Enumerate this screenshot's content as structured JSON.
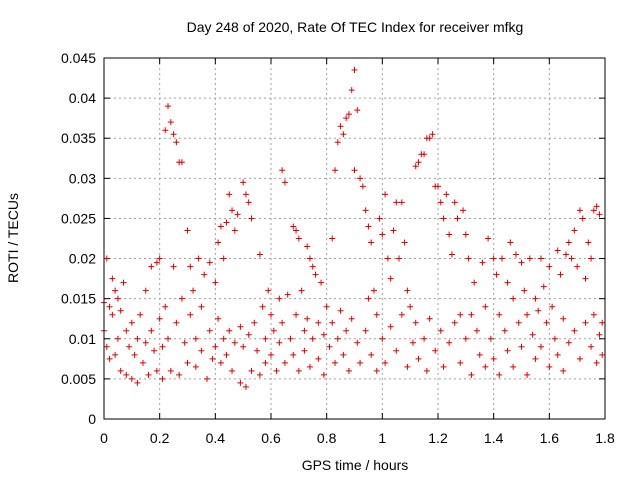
{
  "chart_data": {
    "type": "scatter",
    "title": "Day 248 of 2020, Rate Of TEC Index for receiver mfkg",
    "xlabel": "GPS time / hours",
    "ylabel": "ROTI / TECUs",
    "xlim": [
      0,
      1.8
    ],
    "ylim": [
      0,
      0.045
    ],
    "x_ticks": [
      "0",
      "0.2",
      "0.4",
      "0.6",
      "0.8",
      "1",
      "1.2",
      "1.4",
      "1.6",
      "1.8"
    ],
    "y_ticks": [
      "0",
      "0.005",
      "0.01",
      "0.015",
      "0.02",
      "0.025",
      "0.03",
      "0.035",
      "0.04",
      "0.045"
    ],
    "grid": true,
    "marker": "plus",
    "color": "#e00000",
    "points": [
      [
        0.0,
        0.0145
      ],
      [
        0.0,
        0.011
      ],
      [
        0.01,
        0.02
      ],
      [
        0.01,
        0.009
      ],
      [
        0.02,
        0.014
      ],
      [
        0.02,
        0.0075
      ],
      [
        0.03,
        0.0175
      ],
      [
        0.03,
        0.013
      ],
      [
        0.04,
        0.016
      ],
      [
        0.04,
        0.008
      ],
      [
        0.05,
        0.015
      ],
      [
        0.05,
        0.01
      ],
      [
        0.06,
        0.0135
      ],
      [
        0.06,
        0.006
      ],
      [
        0.07,
        0.017
      ],
      [
        0.08,
        0.011
      ],
      [
        0.08,
        0.0055
      ],
      [
        0.09,
        0.009
      ],
      [
        0.1,
        0.012
      ],
      [
        0.1,
        0.005
      ],
      [
        0.11,
        0.008
      ],
      [
        0.12,
        0.01
      ],
      [
        0.12,
        0.0045
      ],
      [
        0.13,
        0.013
      ],
      [
        0.14,
        0.007
      ],
      [
        0.15,
        0.016
      ],
      [
        0.15,
        0.0095
      ],
      [
        0.16,
        0.0055
      ],
      [
        0.17,
        0.019
      ],
      [
        0.17,
        0.011
      ],
      [
        0.18,
        0.0085
      ],
      [
        0.19,
        0.0195
      ],
      [
        0.19,
        0.006
      ],
      [
        0.2,
        0.02
      ],
      [
        0.2,
        0.0125
      ],
      [
        0.21,
        0.009
      ],
      [
        0.21,
        0.005
      ],
      [
        0.22,
        0.036
      ],
      [
        0.22,
        0.014
      ],
      [
        0.23,
        0.039
      ],
      [
        0.23,
        0.01
      ],
      [
        0.24,
        0.037
      ],
      [
        0.24,
        0.006
      ],
      [
        0.25,
        0.0355
      ],
      [
        0.25,
        0.019
      ],
      [
        0.26,
        0.0345
      ],
      [
        0.26,
        0.012
      ],
      [
        0.27,
        0.032
      ],
      [
        0.27,
        0.0055
      ],
      [
        0.28,
        0.032
      ],
      [
        0.28,
        0.015
      ],
      [
        0.29,
        0.0095
      ],
      [
        0.3,
        0.0235
      ],
      [
        0.3,
        0.007
      ],
      [
        0.31,
        0.019
      ],
      [
        0.31,
        0.013
      ],
      [
        0.32,
        0.016
      ],
      [
        0.33,
        0.01
      ],
      [
        0.33,
        0.0065
      ],
      [
        0.34,
        0.02
      ],
      [
        0.35,
        0.014
      ],
      [
        0.35,
        0.0085
      ],
      [
        0.36,
        0.018
      ],
      [
        0.37,
        0.005
      ],
      [
        0.38,
        0.0195
      ],
      [
        0.38,
        0.011
      ],
      [
        0.39,
        0.0075
      ],
      [
        0.4,
        0.017
      ],
      [
        0.4,
        0.009
      ],
      [
        0.41,
        0.022
      ],
      [
        0.41,
        0.0125
      ],
      [
        0.42,
        0.024
      ],
      [
        0.42,
        0.007
      ],
      [
        0.43,
        0.02
      ],
      [
        0.43,
        0.01
      ],
      [
        0.44,
        0.0245
      ],
      [
        0.44,
        0.008
      ],
      [
        0.45,
        0.028
      ],
      [
        0.45,
        0.011
      ],
      [
        0.46,
        0.026
      ],
      [
        0.46,
        0.006
      ],
      [
        0.47,
        0.0235
      ],
      [
        0.47,
        0.0095
      ],
      [
        0.48,
        0.0255
      ],
      [
        0.49,
        0.0115
      ],
      [
        0.49,
        0.0045
      ],
      [
        0.5,
        0.0295
      ],
      [
        0.5,
        0.009
      ],
      [
        0.51,
        0.028
      ],
      [
        0.51,
        0.004
      ],
      [
        0.52,
        0.027
      ],
      [
        0.52,
        0.0105
      ],
      [
        0.53,
        0.025
      ],
      [
        0.53,
        0.006
      ],
      [
        0.54,
        0.012
      ],
      [
        0.55,
        0.0085
      ],
      [
        0.56,
        0.0205
      ],
      [
        0.56,
        0.0055
      ],
      [
        0.57,
        0.014
      ],
      [
        0.58,
        0.01
      ],
      [
        0.58,
        0.007
      ],
      [
        0.59,
        0.016
      ],
      [
        0.6,
        0.013
      ],
      [
        0.6,
        0.008
      ],
      [
        0.61,
        0.011
      ],
      [
        0.62,
        0.006
      ],
      [
        0.63,
        0.015
      ],
      [
        0.63,
        0.0095
      ],
      [
        0.64,
        0.031
      ],
      [
        0.64,
        0.012
      ],
      [
        0.65,
        0.0295
      ],
      [
        0.65,
        0.007
      ],
      [
        0.66,
        0.0155
      ],
      [
        0.67,
        0.01
      ],
      [
        0.68,
        0.024
      ],
      [
        0.68,
        0.008
      ],
      [
        0.69,
        0.0235
      ],
      [
        0.69,
        0.013
      ],
      [
        0.7,
        0.0225
      ],
      [
        0.7,
        0.006
      ],
      [
        0.71,
        0.016
      ],
      [
        0.72,
        0.011
      ],
      [
        0.72,
        0.0085
      ],
      [
        0.73,
        0.0215
      ],
      [
        0.73,
        0.0125
      ],
      [
        0.74,
        0.02
      ],
      [
        0.74,
        0.0065
      ],
      [
        0.75,
        0.019
      ],
      [
        0.75,
        0.01
      ],
      [
        0.76,
        0.018
      ],
      [
        0.77,
        0.012
      ],
      [
        0.77,
        0.0075
      ],
      [
        0.78,
        0.017
      ],
      [
        0.79,
        0.0105
      ],
      [
        0.79,
        0.0055
      ],
      [
        0.8,
        0.014
      ],
      [
        0.81,
        0.009
      ],
      [
        0.82,
        0.0225
      ],
      [
        0.82,
        0.012
      ],
      [
        0.83,
        0.031
      ],
      [
        0.83,
        0.007
      ],
      [
        0.84,
        0.0345
      ],
      [
        0.84,
        0.01
      ],
      [
        0.85,
        0.0365
      ],
      [
        0.85,
        0.0135
      ],
      [
        0.86,
        0.0355
      ],
      [
        0.86,
        0.008
      ],
      [
        0.87,
        0.0375
      ],
      [
        0.87,
        0.011
      ],
      [
        0.88,
        0.038
      ],
      [
        0.88,
        0.006
      ],
      [
        0.89,
        0.041
      ],
      [
        0.89,
        0.0125
      ],
      [
        0.9,
        0.0435
      ],
      [
        0.9,
        0.031
      ],
      [
        0.91,
        0.0385
      ],
      [
        0.91,
        0.0095
      ],
      [
        0.92,
        0.03
      ],
      [
        0.92,
        0.007
      ],
      [
        0.93,
        0.029
      ],
      [
        0.94,
        0.026
      ],
      [
        0.94,
        0.011
      ],
      [
        0.95,
        0.024
      ],
      [
        0.95,
        0.015
      ],
      [
        0.96,
        0.022
      ],
      [
        0.96,
        0.008
      ],
      [
        0.97,
        0.016
      ],
      [
        0.98,
        0.013
      ],
      [
        0.98,
        0.006
      ],
      [
        0.99,
        0.025
      ],
      [
        1.0,
        0.023
      ],
      [
        1.0,
        0.01
      ],
      [
        1.01,
        0.028
      ],
      [
        1.01,
        0.007
      ],
      [
        1.02,
        0.02
      ],
      [
        1.03,
        0.0175
      ],
      [
        1.03,
        0.0115
      ],
      [
        1.04,
        0.0235
      ],
      [
        1.05,
        0.027
      ],
      [
        1.05,
        0.0085
      ],
      [
        1.06,
        0.02
      ],
      [
        1.07,
        0.027
      ],
      [
        1.07,
        0.013
      ],
      [
        1.08,
        0.022
      ],
      [
        1.09,
        0.016
      ],
      [
        1.09,
        0.0065
      ],
      [
        1.1,
        0.014
      ],
      [
        1.11,
        0.0095
      ],
      [
        1.12,
        0.0315
      ],
      [
        1.12,
        0.012
      ],
      [
        1.13,
        0.032
      ],
      [
        1.13,
        0.0075
      ],
      [
        1.14,
        0.033
      ],
      [
        1.15,
        0.033
      ],
      [
        1.15,
        0.01
      ],
      [
        1.16,
        0.035
      ],
      [
        1.16,
        0.006
      ],
      [
        1.17,
        0.035
      ],
      [
        1.17,
        0.0125
      ],
      [
        1.18,
        0.0355
      ],
      [
        1.19,
        0.029
      ],
      [
        1.19,
        0.0085
      ],
      [
        1.2,
        0.029
      ],
      [
        1.21,
        0.027
      ],
      [
        1.21,
        0.011
      ],
      [
        1.22,
        0.025
      ],
      [
        1.22,
        0.0065
      ],
      [
        1.23,
        0.028
      ],
      [
        1.24,
        0.023
      ],
      [
        1.24,
        0.0095
      ],
      [
        1.25,
        0.0205
      ],
      [
        1.26,
        0.027
      ],
      [
        1.26,
        0.012
      ],
      [
        1.27,
        0.025
      ],
      [
        1.28,
        0.013
      ],
      [
        1.28,
        0.007
      ],
      [
        1.29,
        0.026
      ],
      [
        1.3,
        0.023
      ],
      [
        1.3,
        0.01
      ],
      [
        1.31,
        0.02
      ],
      [
        1.32,
        0.013
      ],
      [
        1.32,
        0.0055
      ],
      [
        1.33,
        0.017
      ],
      [
        1.34,
        0.011
      ],
      [
        1.35,
        0.008
      ],
      [
        1.36,
        0.0195
      ],
      [
        1.37,
        0.014
      ],
      [
        1.37,
        0.0065
      ],
      [
        1.38,
        0.0225
      ],
      [
        1.39,
        0.01
      ],
      [
        1.4,
        0.02
      ],
      [
        1.4,
        0.0075
      ],
      [
        1.41,
        0.018
      ],
      [
        1.42,
        0.013
      ],
      [
        1.42,
        0.0055
      ],
      [
        1.43,
        0.02
      ],
      [
        1.44,
        0.011
      ],
      [
        1.45,
        0.017
      ],
      [
        1.45,
        0.0085
      ],
      [
        1.46,
        0.022
      ],
      [
        1.47,
        0.015
      ],
      [
        1.47,
        0.0065
      ],
      [
        1.48,
        0.0205
      ],
      [
        1.49,
        0.012
      ],
      [
        1.5,
        0.0195
      ],
      [
        1.5,
        0.009
      ],
      [
        1.51,
        0.016
      ],
      [
        1.52,
        0.013
      ],
      [
        1.52,
        0.0055
      ],
      [
        1.53,
        0.02
      ],
      [
        1.54,
        0.0105
      ],
      [
        1.55,
        0.015
      ],
      [
        1.55,
        0.0075
      ],
      [
        1.56,
        0.0135
      ],
      [
        1.57,
        0.02
      ],
      [
        1.57,
        0.009
      ],
      [
        1.58,
        0.0165
      ],
      [
        1.59,
        0.012
      ],
      [
        1.6,
        0.019
      ],
      [
        1.6,
        0.0065
      ],
      [
        1.61,
        0.014
      ],
      [
        1.62,
        0.01
      ],
      [
        1.63,
        0.021
      ],
      [
        1.63,
        0.008
      ],
      [
        1.64,
        0.018
      ],
      [
        1.65,
        0.0125
      ],
      [
        1.65,
        0.006
      ],
      [
        1.66,
        0.0205
      ],
      [
        1.67,
        0.022
      ],
      [
        1.67,
        0.0095
      ],
      [
        1.68,
        0.02
      ],
      [
        1.69,
        0.0235
      ],
      [
        1.69,
        0.011
      ],
      [
        1.7,
        0.019
      ],
      [
        1.71,
        0.026
      ],
      [
        1.71,
        0.0075
      ],
      [
        1.72,
        0.025
      ],
      [
        1.73,
        0.0175
      ],
      [
        1.73,
        0.012
      ],
      [
        1.74,
        0.022
      ],
      [
        1.75,
        0.02
      ],
      [
        1.75,
        0.009
      ],
      [
        1.76,
        0.026
      ],
      [
        1.76,
        0.013
      ],
      [
        1.77,
        0.0265
      ],
      [
        1.77,
        0.007
      ],
      [
        1.78,
        0.0255
      ],
      [
        1.78,
        0.0105
      ],
      [
        1.79,
        0.012
      ],
      [
        1.79,
        0.008
      ]
    ]
  }
}
